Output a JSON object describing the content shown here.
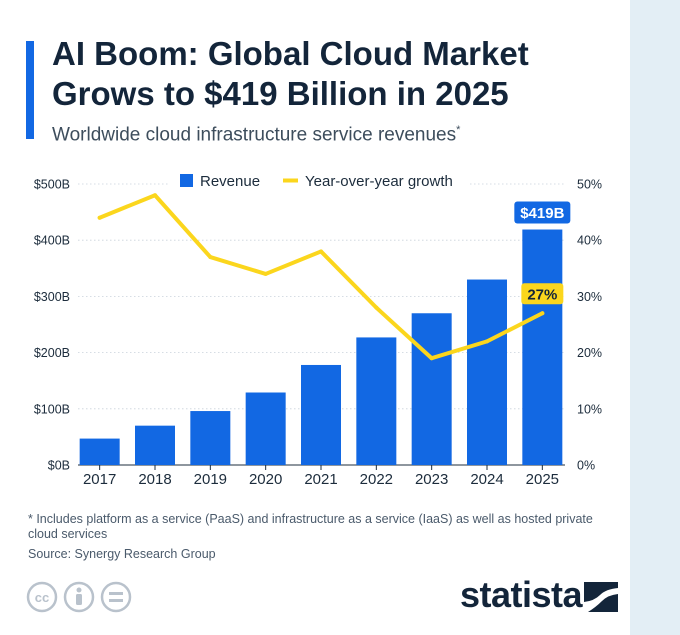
{
  "title": "AI Boom: Global Cloud Market Grows to $419 Billion in 2025",
  "subtitle": "Worldwide cloud infrastructure service revenues",
  "subtitle_marker": "*",
  "footnote": "* Includes platform as a service (PaaS) and infrastructure as a service (IaaS) as well as hosted private cloud services",
  "source": "Source: Synergy Research Group",
  "brand": "statista",
  "license_icons": [
    "cc-icon",
    "by-icon",
    "nd-icon"
  ],
  "colors": {
    "bar": "#1268e3",
    "line": "#fbd61d",
    "text": "#13253a",
    "grid": "#c9d2db"
  },
  "chart_data": {
    "type": "bar+line",
    "categories": [
      "2017",
      "2018",
      "2019",
      "2020",
      "2021",
      "2022",
      "2023",
      "2024",
      "2025"
    ],
    "series": [
      {
        "name": "Revenue",
        "axis": "left",
        "kind": "bar",
        "values": [
          47,
          70,
          96,
          129,
          178,
          227,
          270,
          330,
          419
        ]
      },
      {
        "name": "Year-over-year growth",
        "axis": "right",
        "kind": "line",
        "values": [
          44,
          48,
          37,
          34,
          38,
          28,
          19,
          22,
          27
        ]
      }
    ],
    "y_left": {
      "min": 0,
      "max": 500,
      "ticks": [
        0,
        100,
        200,
        300,
        400,
        500
      ],
      "tick_labels": [
        "$0B",
        "$100B",
        "$200B",
        "$300B",
        "$400B",
        "$500B"
      ]
    },
    "y_right": {
      "min": 0,
      "max": 50,
      "ticks": [
        0,
        10,
        20,
        30,
        40,
        50
      ],
      "tick_labels": [
        "0%",
        "10%",
        "20%",
        "30%",
        "40%",
        "50%"
      ]
    },
    "annotations": [
      {
        "series": "Revenue",
        "category": "2025",
        "text": "$419B"
      },
      {
        "series": "Year-over-year growth",
        "category": "2025",
        "text": "27%"
      }
    ],
    "legend": [
      "Revenue",
      "Year-over-year growth"
    ],
    "legend_position": "top-center",
    "grid": true
  }
}
